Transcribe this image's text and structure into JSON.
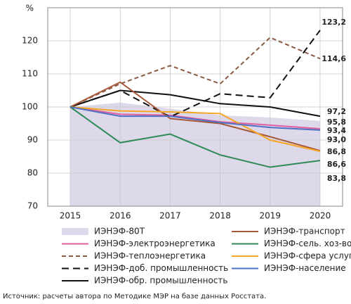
{
  "chart_data": {
    "type": "line",
    "y_unit": "%",
    "x": [
      2015,
      2016,
      2017,
      2018,
      2019,
      2020
    ],
    "xlim": [
      2014.55,
      2020.45
    ],
    "xticks": [
      2015,
      2016,
      2017,
      2018,
      2019,
      2020
    ],
    "ylim": [
      70,
      130
    ],
    "yticks": [
      70,
      80,
      90,
      100,
      110,
      120
    ],
    "grid": true,
    "series": [
      {
        "name": "ИЭНЭФ-80Т",
        "kind": "area",
        "color": "#ddd8ea",
        "values": [
          100,
          101.3,
          99.5,
          97.5,
          96.8,
          95.8
        ],
        "value_labels": [
          null,
          null,
          null,
          null,
          null,
          "95,8"
        ],
        "label_color": "#111"
      },
      {
        "name": "ИЭНЭФ-электроэнергетика",
        "color": "#e0609f",
        "values": [
          100,
          97.8,
          97.5,
          95.5,
          94.5,
          93.4
        ],
        "value_labels": [
          null,
          null,
          null,
          null,
          null,
          "93,4"
        ]
      },
      {
        "name": "ИЭНЭФ-теплоэнергетика",
        "color": "#8a5a44",
        "dash": "6 4",
        "values": [
          100,
          107,
          112.5,
          107,
          121,
          114.6
        ],
        "value_labels": [
          null,
          null,
          null,
          null,
          null,
          "114,6"
        ]
      },
      {
        "name": "ИЭНЭФ-доб. промышленность",
        "color": "#111111",
        "dash": "10 6",
        "values": [
          100,
          105,
          97,
          104,
          102.8,
          123.2
        ],
        "value_labels": [
          null,
          null,
          null,
          null,
          null,
          "123,2"
        ]
      },
      {
        "name": "ИЭНЭФ-обр. промышленность",
        "color": "#111111",
        "values": [
          100,
          105,
          103.7,
          101,
          100,
          97.2
        ],
        "value_labels": [
          null,
          null,
          null,
          null,
          null,
          "97,2"
        ]
      },
      {
        "name": "ИЭНЭФ-транспорт",
        "color": "#a6593a",
        "values": [
          100,
          107.5,
          96.5,
          95,
          91,
          86.8
        ],
        "value_labels": [
          null,
          null,
          null,
          null,
          null,
          "86,8"
        ]
      },
      {
        "name": "ИЭНЭФ-сель. хоз-во",
        "color": "#2e8b57",
        "values": [
          100,
          89.2,
          91.8,
          85.5,
          81.8,
          83.8
        ],
        "value_labels": [
          null,
          null,
          null,
          null,
          null,
          "83,8"
        ]
      },
      {
        "name": "ИЭНЭФ-сфера услуг",
        "color": "#f5a623",
        "values": [
          100,
          98.8,
          98.5,
          98,
          90,
          86.6
        ],
        "value_labels": [
          null,
          null,
          null,
          null,
          null,
          "86,6"
        ]
      },
      {
        "name": "ИЭНЭФ-население",
        "color": "#4f72c4",
        "values": [
          100,
          97.2,
          97.2,
          95.3,
          93.8,
          93.0
        ],
        "value_labels": [
          null,
          null,
          null,
          null,
          null,
          "93,0"
        ]
      }
    ],
    "source": "Источник: расчеты автора по Методике МЭР на базе данных Росстата."
  }
}
